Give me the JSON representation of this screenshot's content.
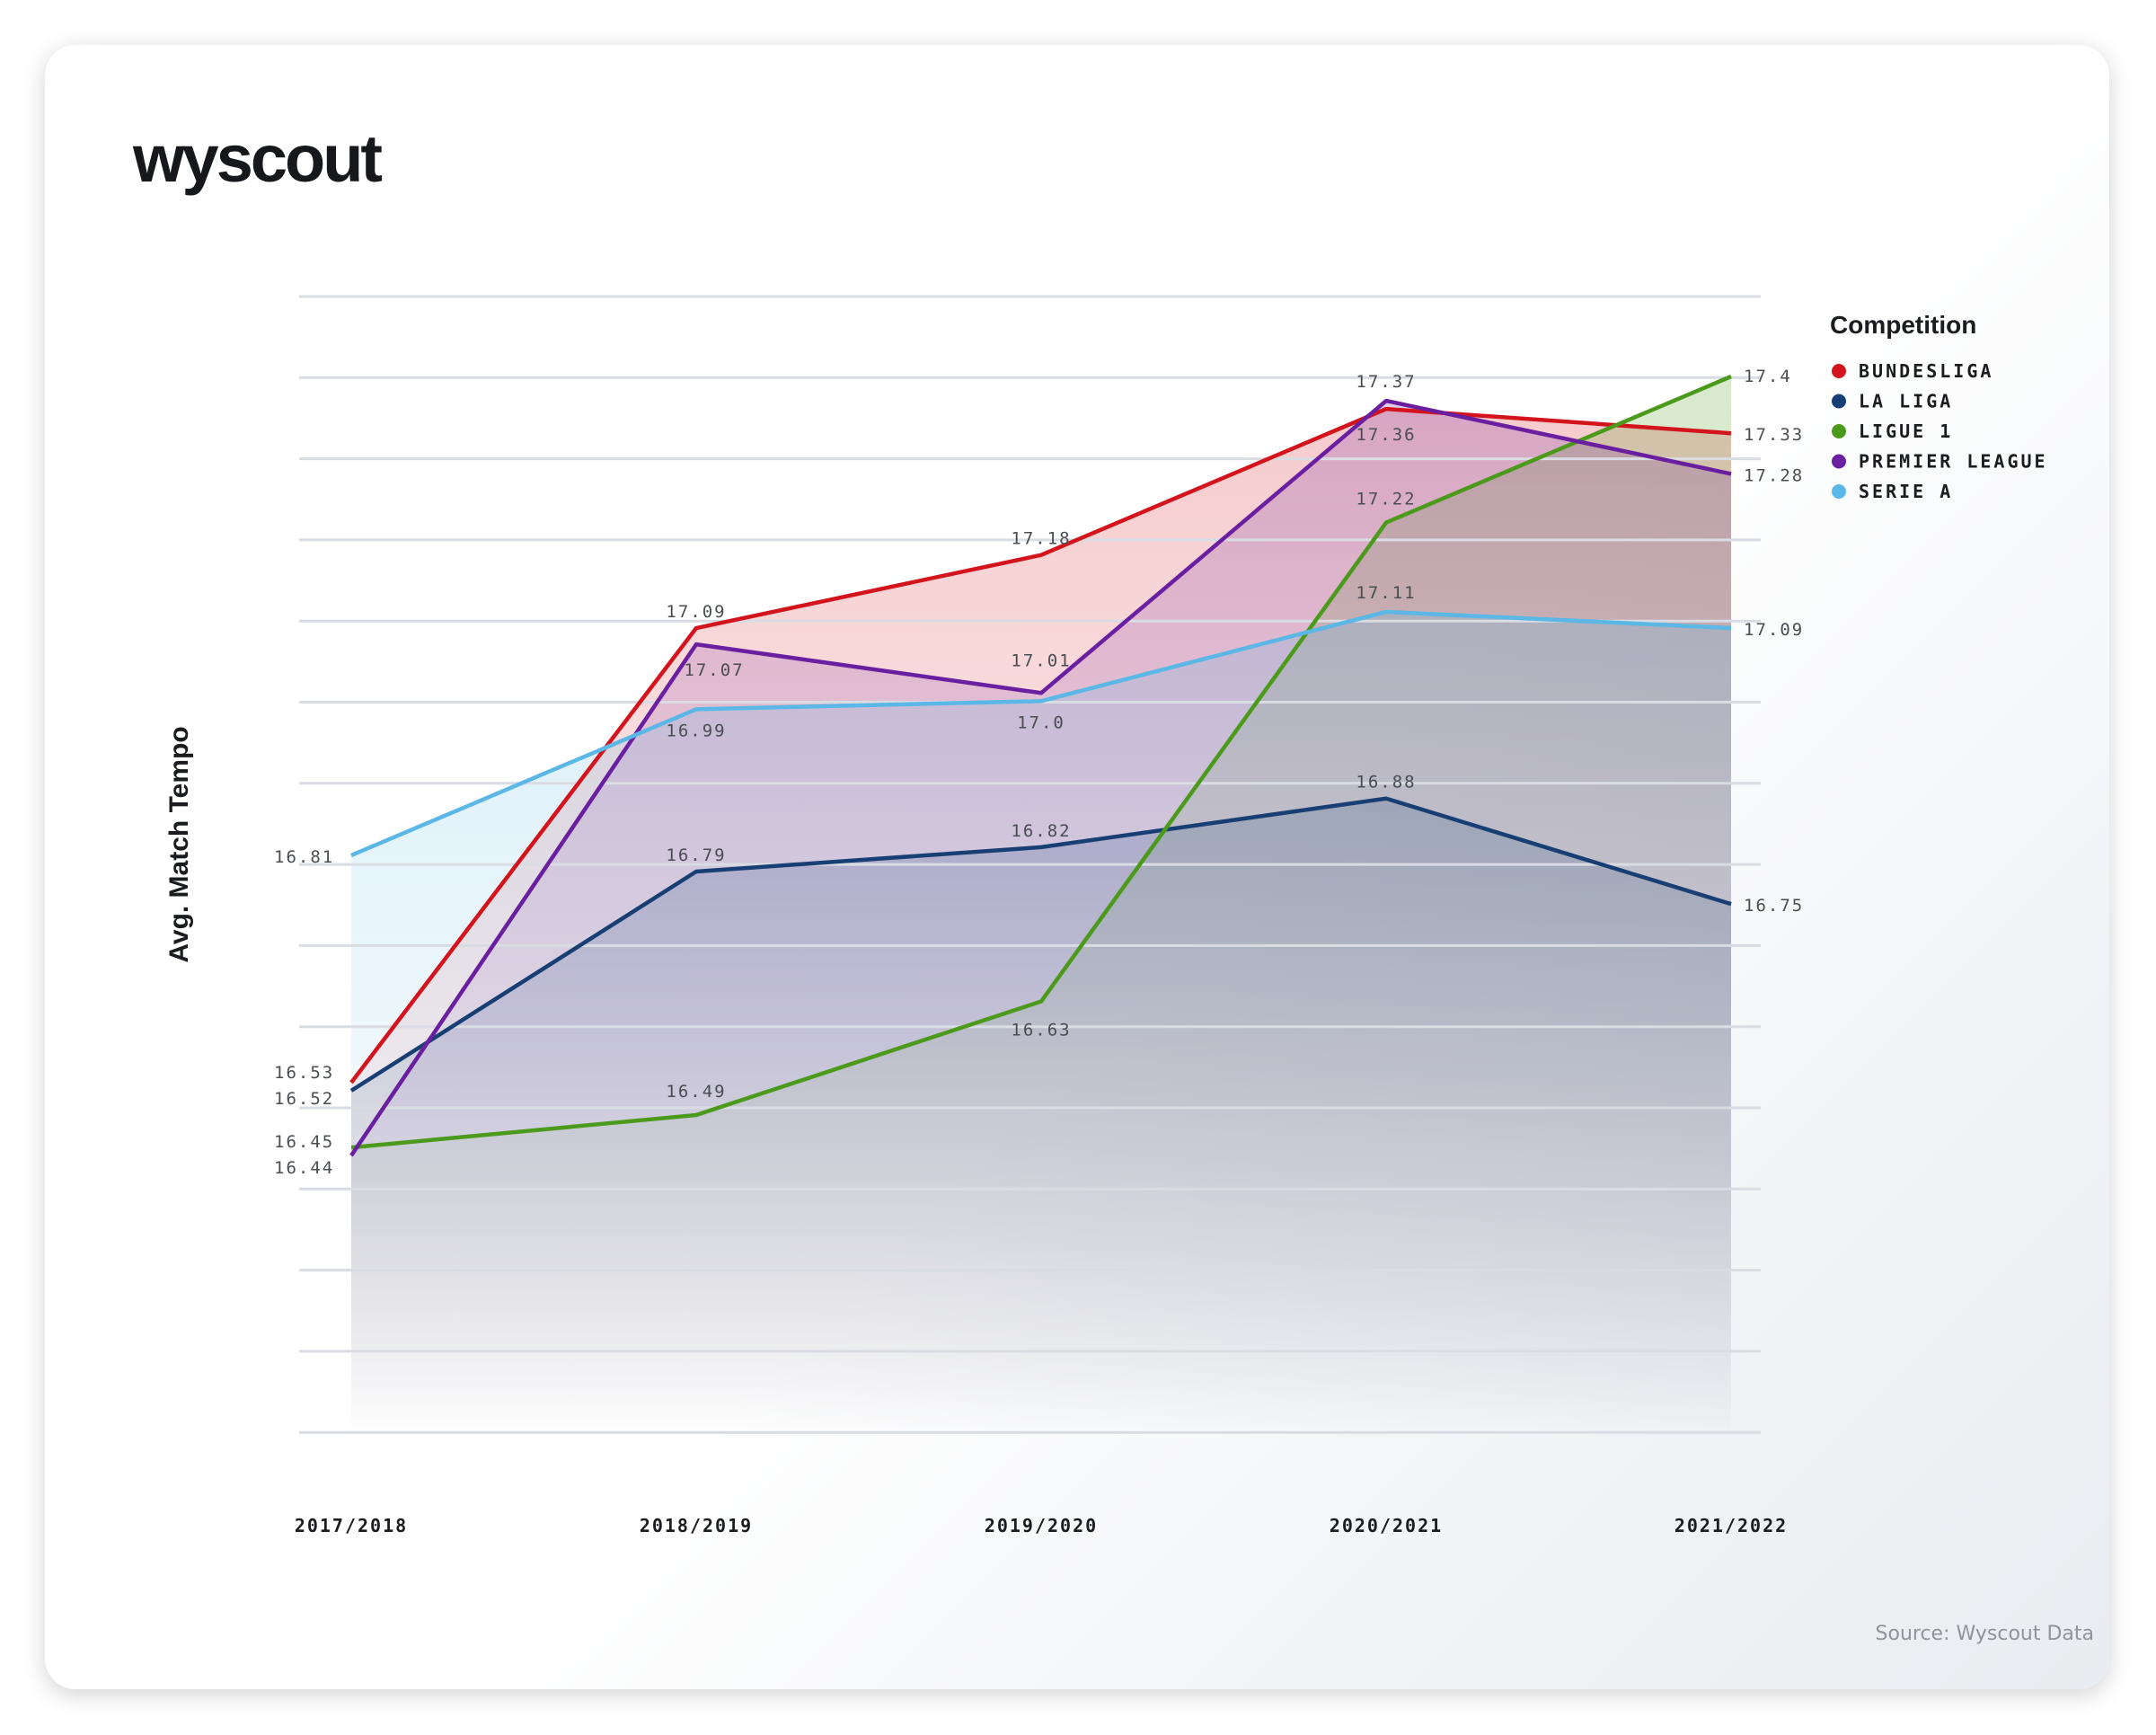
{
  "brand": {
    "logo_text": "wyscout"
  },
  "footer": {
    "source_text": "Source: Wyscout Data"
  },
  "chart_data": {
    "type": "line",
    "title": "",
    "xlabel": "",
    "ylabel": "Avg. Match Tempo",
    "ylim": [
      16.0,
      17.5
    ],
    "grid": true,
    "legend": {
      "title": "Competition",
      "position": "top-right"
    },
    "categories": [
      "2017/2018",
      "2018/2019",
      "2019/2020",
      "2020/2021",
      "2021/2022"
    ],
    "series": [
      {
        "name": "BUNDESLIGA",
        "color": "#d3141c",
        "values": [
          16.53,
          17.09,
          17.18,
          17.36,
          17.33
        ]
      },
      {
        "name": "LA LIGA",
        "color": "#183f74",
        "values": [
          16.52,
          16.79,
          16.82,
          16.88,
          16.75
        ]
      },
      {
        "name": "LIGUE 1",
        "color": "#4c9a1c",
        "values": [
          16.45,
          16.49,
          16.63,
          17.22,
          17.4
        ]
      },
      {
        "name": "PREMIER LEAGUE",
        "color": "#6a1fa0",
        "values": [
          16.44,
          17.07,
          17.01,
          17.37,
          17.28
        ]
      },
      {
        "name": "SERIE A",
        "color": "#5ab7e6",
        "values": [
          16.81,
          16.99,
          17.0,
          17.11,
          17.09
        ]
      }
    ],
    "data_labels": [
      [
        "16.53",
        "17.09",
        "17.18",
        "17.36",
        "17.33"
      ],
      [
        "16.52",
        "16.79",
        "16.82",
        "16.88",
        "16.75"
      ],
      [
        "16.45",
        "16.49",
        "16.63",
        "17.22",
        "17.4"
      ],
      [
        "16.44",
        "17.07",
        "17.01",
        "17.37",
        "17.28"
      ],
      [
        "16.81",
        "16.99",
        "17.0",
        "17.11",
        "17.09"
      ]
    ]
  }
}
